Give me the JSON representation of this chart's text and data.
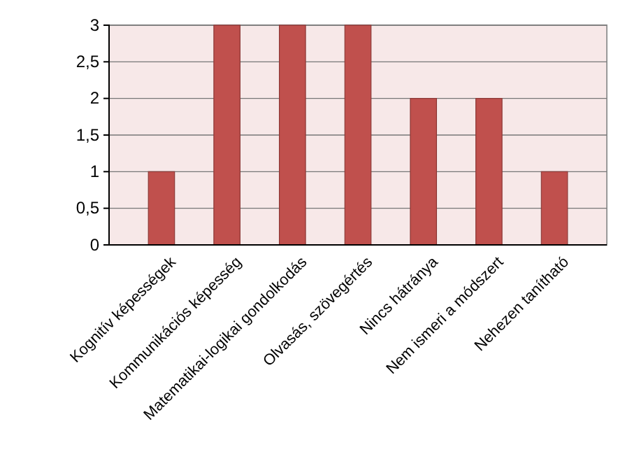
{
  "chart_data": {
    "type": "bar",
    "categories": [
      "Kognitív képességek",
      "Kommunikációs képesség",
      "Matematikai-logikai gondolkodás",
      "Olvasás, szövegértés",
      "Nincs hátránya",
      "Nem ismeri a módszert",
      "Nehezen tanítható"
    ],
    "values": [
      1,
      3,
      3,
      3,
      2,
      2,
      1
    ],
    "color": "#c0504d",
    "ylim": [
      0,
      3
    ],
    "yticks": [
      0,
      {
        "value": 0.5,
        "label": "0,5"
      },
      1,
      {
        "value": 1.5,
        "label": "1,5"
      },
      2,
      {
        "value": 2.5,
        "label": "2,5"
      },
      3
    ],
    "grid": "y"
  }
}
